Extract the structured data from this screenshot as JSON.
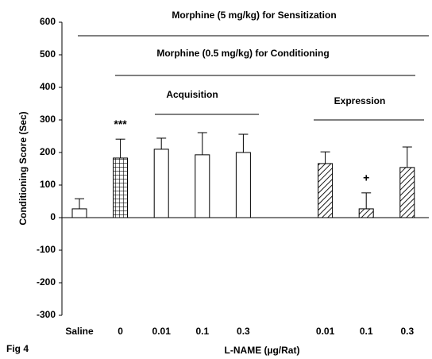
{
  "chart_data": {
    "type": "bar",
    "y_label": "Conditioning Score (Sec)",
    "x_label": "L-NAME (µg/Rat)",
    "figure_label": "Fig 4",
    "categories": [
      "Saline",
      "0",
      "0.01",
      "0.1",
      "0.3",
      null,
      "0.01",
      "0.1",
      "0.3"
    ],
    "values": [
      27,
      183,
      210,
      193,
      200,
      null,
      166,
      27,
      154
    ],
    "errors": [
      31,
      58,
      34,
      68,
      56,
      null,
      36,
      49,
      63
    ],
    "patterns": [
      "none",
      "grid",
      "none",
      "none",
      "none",
      null,
      "diagonal",
      "diagonal",
      "diagonal"
    ],
    "color": "#000000",
    "ylim": [
      -300,
      600
    ],
    "yticks": [
      -300,
      -200,
      -100,
      0,
      100,
      200,
      300,
      400,
      500,
      600
    ],
    "annotations": [
      "Morphine (5 mg/kg) for Sensitization",
      "Morphine (0.5 mg/kg) for Conditioning",
      "Acquisition",
      "Expression"
    ],
    "bar_annotations": [
      null,
      "***",
      null,
      null,
      null,
      null,
      null,
      "+",
      null
    ]
  }
}
